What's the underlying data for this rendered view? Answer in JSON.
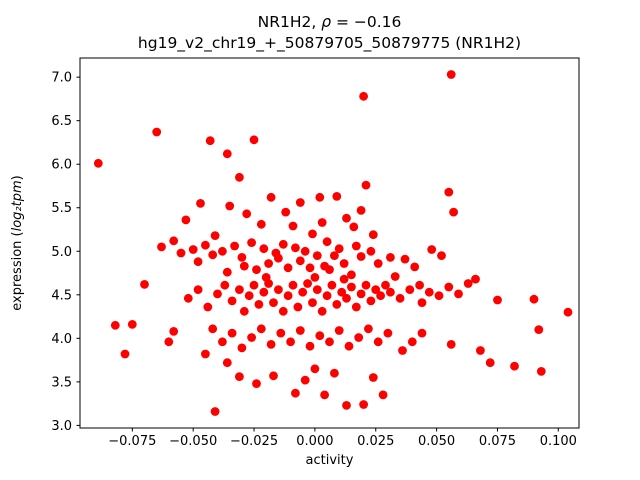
{
  "title": {
    "line1_prefix": "NR1H2, ",
    "line1_rho": "ρ",
    "line1_suffix": " = −0.16",
    "line2": "hg19_v2_chr19_+_50879705_50879775 (NR1H2)"
  },
  "axes": {
    "xlabel": "activity",
    "ylabel_prefix": "expression (",
    "ylabel_math": "log₂tpm",
    "ylabel_suffix": ")"
  },
  "chart_data": {
    "type": "scatter",
    "title": "NR1H2, ρ = −0.16",
    "subtitle": "hg19_v2_chr19_+_50879705_50879775 (NR1H2)",
    "xlabel": "activity",
    "ylabel": "expression (log₂tpm)",
    "marker_color": "#ff0000",
    "marker_radius": 4.4,
    "grid": false,
    "legend": "none",
    "xlim": [
      -0.0965,
      0.1085
    ],
    "ylim": [
      2.97,
      7.22
    ],
    "x_ticks": [
      -0.075,
      -0.05,
      -0.025,
      0,
      0.025,
      0.05,
      0.075,
      0.1
    ],
    "x_tick_labels": [
      "−0.075",
      "−0.050",
      "−0.025",
      "0.000",
      "0.025",
      "0.050",
      "0.075",
      "0.100"
    ],
    "y_ticks": [
      3,
      3.5,
      4,
      4.5,
      5,
      5.5,
      6,
      6.5,
      7
    ],
    "y_tick_labels": [
      "3.0",
      "3.5",
      "4.0",
      "4.5",
      "5.0",
      "5.5",
      "6.0",
      "6.5",
      "7.0"
    ],
    "points": [
      [
        -0.089,
        6.01
      ],
      [
        -0.065,
        6.37
      ],
      [
        -0.043,
        6.27
      ],
      [
        -0.036,
        6.12
      ],
      [
        -0.025,
        6.28
      ],
      [
        0.02,
        6.78
      ],
      [
        0.056,
        7.03
      ],
      [
        -0.031,
        5.85
      ],
      [
        0.021,
        5.76
      ],
      [
        0.055,
        5.68
      ],
      [
        0.057,
        5.45
      ],
      [
        -0.047,
        5.55
      ],
      [
        -0.035,
        5.52
      ],
      [
        -0.053,
        5.36
      ],
      [
        -0.028,
        5.43
      ],
      [
        -0.018,
        5.62
      ],
      [
        -0.006,
        5.56
      ],
      [
        0.002,
        5.62
      ],
      [
        0.009,
        5.63
      ],
      [
        -0.012,
        5.45
      ],
      [
        0.013,
        5.38
      ],
      [
        0.019,
        5.47
      ],
      [
        0.016,
        5.28
      ],
      [
        0.003,
        5.33
      ],
      [
        -0.009,
        5.29
      ],
      [
        -0.022,
        5.31
      ],
      [
        -0.041,
        5.18
      ],
      [
        -0.001,
        5.2
      ],
      [
        0.024,
        5.19
      ],
      [
        -0.063,
        5.05
      ],
      [
        -0.058,
        5.12
      ],
      [
        -0.055,
        4.98
      ],
      [
        -0.05,
        5.02
      ],
      [
        -0.045,
        5.07
      ],
      [
        -0.042,
        4.96
      ],
      [
        -0.038,
        5.0
      ],
      [
        -0.033,
        5.06
      ],
      [
        -0.03,
        4.93
      ],
      [
        -0.026,
        5.1
      ],
      [
        -0.021,
        5.03
      ],
      [
        -0.016,
        4.98
      ],
      [
        -0.013,
        5.08
      ],
      [
        -0.008,
        5.04
      ],
      [
        -0.004,
        5.0
      ],
      [
        0.001,
        4.95
      ],
      [
        0.005,
        5.11
      ],
      [
        0.01,
        5.03
      ],
      [
        0.017,
        5.06
      ],
      [
        0.023,
        5.0
      ],
      [
        0.031,
        4.93
      ],
      [
        0.037,
        4.91
      ],
      [
        0.048,
        5.02
      ],
      [
        0.052,
        4.95
      ],
      [
        -0.048,
        4.88
      ],
      [
        -0.036,
        4.76
      ],
      [
        -0.029,
        4.83
      ],
      [
        -0.024,
        4.79
      ],
      [
        -0.019,
        4.86
      ],
      [
        -0.011,
        4.81
      ],
      [
        -0.006,
        4.89
      ],
      [
        -0.002,
        4.81
      ],
      [
        0.004,
        4.83
      ],
      [
        0.008,
        4.95
      ],
      [
        0.012,
        4.86
      ],
      [
        0.015,
        4.73
      ],
      [
        0.019,
        4.94
      ],
      [
        0.026,
        4.86
      ],
      [
        0.033,
        4.71
      ],
      [
        0.006,
        4.79
      ],
      [
        -0.015,
        4.92
      ],
      [
        0.041,
        4.82
      ],
      [
        -0.07,
        4.62
      ],
      [
        -0.052,
        4.46
      ],
      [
        -0.048,
        4.56
      ],
      [
        -0.044,
        4.36
      ],
      [
        -0.04,
        4.51
      ],
      [
        -0.037,
        4.61
      ],
      [
        -0.034,
        4.43
      ],
      [
        -0.031,
        4.56
      ],
      [
        -0.029,
        4.31
      ],
      [
        -0.027,
        4.49
      ],
      [
        -0.025,
        4.61
      ],
      [
        -0.023,
        4.39
      ],
      [
        -0.021,
        4.53
      ],
      [
        -0.019,
        4.63
      ],
      [
        -0.017,
        4.41
      ],
      [
        -0.015,
        4.56
      ],
      [
        -0.013,
        4.31
      ],
      [
        -0.011,
        4.49
      ],
      [
        -0.009,
        4.61
      ],
      [
        -0.007,
        4.36
      ],
      [
        -0.005,
        4.53
      ],
      [
        -0.003,
        4.63
      ],
      [
        -0.001,
        4.41
      ],
      [
        0.001,
        4.56
      ],
      [
        0.003,
        4.31
      ],
      [
        0.005,
        4.49
      ],
      [
        0.007,
        4.61
      ],
      [
        0.009,
        4.39
      ],
      [
        0.011,
        4.53
      ],
      [
        0.013,
        4.46
      ],
      [
        0.015,
        4.59
      ],
      [
        0.017,
        4.36
      ],
      [
        0.019,
        4.51
      ],
      [
        0.021,
        4.61
      ],
      [
        0.023,
        4.43
      ],
      [
        0.025,
        4.56
      ],
      [
        0.027,
        4.49
      ],
      [
        0.029,
        4.61
      ],
      [
        0.031,
        4.53
      ],
      [
        0.035,
        4.46
      ],
      [
        0.039,
        4.56
      ],
      [
        0.043,
        4.61
      ],
      [
        0.047,
        4.53
      ],
      [
        0.051,
        4.49
      ],
      [
        0.055,
        4.59
      ],
      [
        0.059,
        4.51
      ],
      [
        0.063,
        4.63
      ],
      [
        0.066,
        4.68
      ],
      [
        0.075,
        4.44
      ],
      [
        0.09,
        4.45
      ],
      [
        0.104,
        4.3
      ],
      [
        0.044,
        4.41
      ],
      [
        0.012,
        4.68
      ],
      [
        -0.02,
        4.7
      ],
      [
        0.0,
        4.7
      ],
      [
        -0.082,
        4.15
      ],
      [
        -0.075,
        4.16
      ],
      [
        -0.06,
        3.96
      ],
      [
        -0.058,
        4.08
      ],
      [
        -0.045,
        3.82
      ],
      [
        -0.042,
        4.11
      ],
      [
        -0.038,
        3.96
      ],
      [
        -0.034,
        4.06
      ],
      [
        -0.03,
        3.89
      ],
      [
        -0.026,
        4.01
      ],
      [
        -0.022,
        4.11
      ],
      [
        -0.018,
        3.93
      ],
      [
        -0.014,
        4.06
      ],
      [
        -0.01,
        3.96
      ],
      [
        -0.006,
        4.09
      ],
      [
        -0.002,
        3.91
      ],
      [
        0.002,
        4.03
      ],
      [
        0.006,
        3.96
      ],
      [
        0.01,
        4.09
      ],
      [
        0.014,
        3.91
      ],
      [
        0.018,
        4.01
      ],
      [
        0.022,
        4.11
      ],
      [
        0.026,
        3.96
      ],
      [
        0.03,
        4.06
      ],
      [
        0.036,
        3.86
      ],
      [
        0.04,
        3.96
      ],
      [
        0.044,
        4.06
      ],
      [
        0.056,
        3.93
      ],
      [
        0.068,
        3.86
      ],
      [
        0.092,
        4.1
      ],
      [
        -0.078,
        3.82
      ],
      [
        0.072,
        3.72
      ],
      [
        0.082,
        3.68
      ],
      [
        0.093,
        3.62
      ],
      [
        -0.041,
        3.16
      ],
      [
        -0.036,
        3.72
      ],
      [
        -0.031,
        3.56
      ],
      [
        -0.024,
        3.48
      ],
      [
        -0.017,
        3.57
      ],
      [
        -0.008,
        3.37
      ],
      [
        -0.004,
        3.52
      ],
      [
        0.0,
        3.65
      ],
      [
        0.004,
        3.35
      ],
      [
        0.008,
        3.6
      ],
      [
        0.013,
        3.23
      ],
      [
        0.02,
        3.24
      ],
      [
        0.024,
        3.55
      ],
      [
        0.028,
        3.35
      ]
    ]
  }
}
